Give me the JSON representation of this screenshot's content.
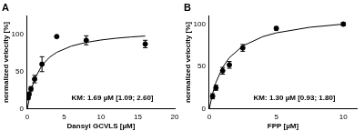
{
  "chart_data": [
    {
      "type": "scatter",
      "title": "A",
      "x_label": "Dansyl GCVLS [µM]",
      "y_label": "normalized velocity [%]",
      "annotation": "KM: 1.69 µM [1.09; 2.60]",
      "color": "#000000",
      "xlim": [
        0,
        20
      ],
      "xticks": [
        0,
        5,
        10,
        15,
        20
      ],
      "ylim": [
        0,
        125
      ],
      "yticks": [
        0,
        50,
        100
      ],
      "grid": false,
      "series": [
        {
          "type": "scatter",
          "marker": "circle",
          "x": [
            0.125,
            0.25,
            0.5,
            1,
            2,
            4,
            8,
            16
          ],
          "values": [
            15,
            20,
            27,
            40,
            60,
            97,
            92,
            87
          ],
          "errors": [
            2,
            2,
            3,
            5,
            10,
            0,
            6,
            5
          ]
        },
        {
          "type": "line",
          "line_style": "solid",
          "x": [
            0,
            0.5,
            1,
            2,
            3,
            4,
            6,
            8,
            10,
            12,
            14,
            16
          ],
          "values": [
            0,
            24.7,
            40.1,
            58.5,
            69.1,
            75.9,
            84.3,
            89.2,
            92.4,
            94.7,
            96.4,
            97.7
          ]
        }
      ]
    },
    {
      "type": "scatter",
      "title": "B",
      "x_label": "FPP [µM]",
      "y_label": "normalized velocity [%]",
      "annotation": "KM: 1.30 µM [0.93; 1.80]",
      "color": "#000000",
      "xlim": [
        0,
        11
      ],
      "xticks": [
        0,
        5,
        10
      ],
      "ylim": [
        0,
        110
      ],
      "yticks": [
        0,
        50,
        100
      ],
      "grid": false,
      "series": [
        {
          "type": "scatter",
          "marker": "circle",
          "x": [
            0.25,
            0.5,
            1,
            1.5,
            2.5,
            5,
            10
          ],
          "values": [
            15,
            25,
            45,
            52,
            72,
            95,
            100
          ],
          "errors": [
            3,
            3,
            4,
            4,
            4,
            2,
            2
          ]
        },
        {
          "type": "line",
          "line_style": "solid",
          "x": [
            0,
            0.25,
            0.5,
            1,
            1.5,
            2.5,
            4,
            5,
            7.5,
            10
          ],
          "values": [
            0,
            18.2,
            31.4,
            49.1,
            60.5,
            74.3,
            85.3,
            89.7,
            96.3,
            100
          ]
        }
      ]
    }
  ]
}
